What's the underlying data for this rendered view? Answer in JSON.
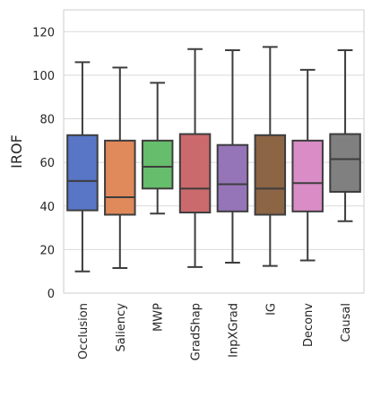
{
  "chart_data": {
    "type": "box",
    "title": "",
    "xlabel": "",
    "ylabel": "IROF",
    "ylim": [
      0,
      130
    ],
    "yticks": [
      0,
      20,
      40,
      60,
      80,
      100,
      120
    ],
    "grid": true,
    "categories": [
      "Occlusion",
      "Saliency",
      "MWP",
      "GradShap",
      "InpXGrad",
      "IG",
      "Deconv",
      "Causal"
    ],
    "colors": [
      "#5876c5",
      "#e0895a",
      "#66bd6b",
      "#cb6a6c",
      "#9575b7",
      "#8c6545",
      "#d98cc5",
      "#808080"
    ],
    "boxes": [
      {
        "whisker_low": 10,
        "q1": 38,
        "median": 51.5,
        "q3": 72.5,
        "whisker_high": 106
      },
      {
        "whisker_low": 11.5,
        "q1": 36,
        "median": 44,
        "q3": 70,
        "whisker_high": 103.5
      },
      {
        "whisker_low": 36.5,
        "q1": 48,
        "median": 58,
        "q3": 70,
        "whisker_high": 96.5
      },
      {
        "whisker_low": 12,
        "q1": 37,
        "median": 48,
        "q3": 73,
        "whisker_high": 112
      },
      {
        "whisker_low": 14,
        "q1": 37.5,
        "median": 50,
        "q3": 68,
        "whisker_high": 111.5
      },
      {
        "whisker_low": 12.5,
        "q1": 36,
        "median": 48,
        "q3": 72.5,
        "whisker_high": 113
      },
      {
        "whisker_low": 15,
        "q1": 37.5,
        "median": 50.5,
        "q3": 70,
        "whisker_high": 102.5
      },
      {
        "whisker_low": 33,
        "q1": 46.5,
        "median": 61.5,
        "q3": 73,
        "whisker_high": 111.5
      }
    ]
  }
}
